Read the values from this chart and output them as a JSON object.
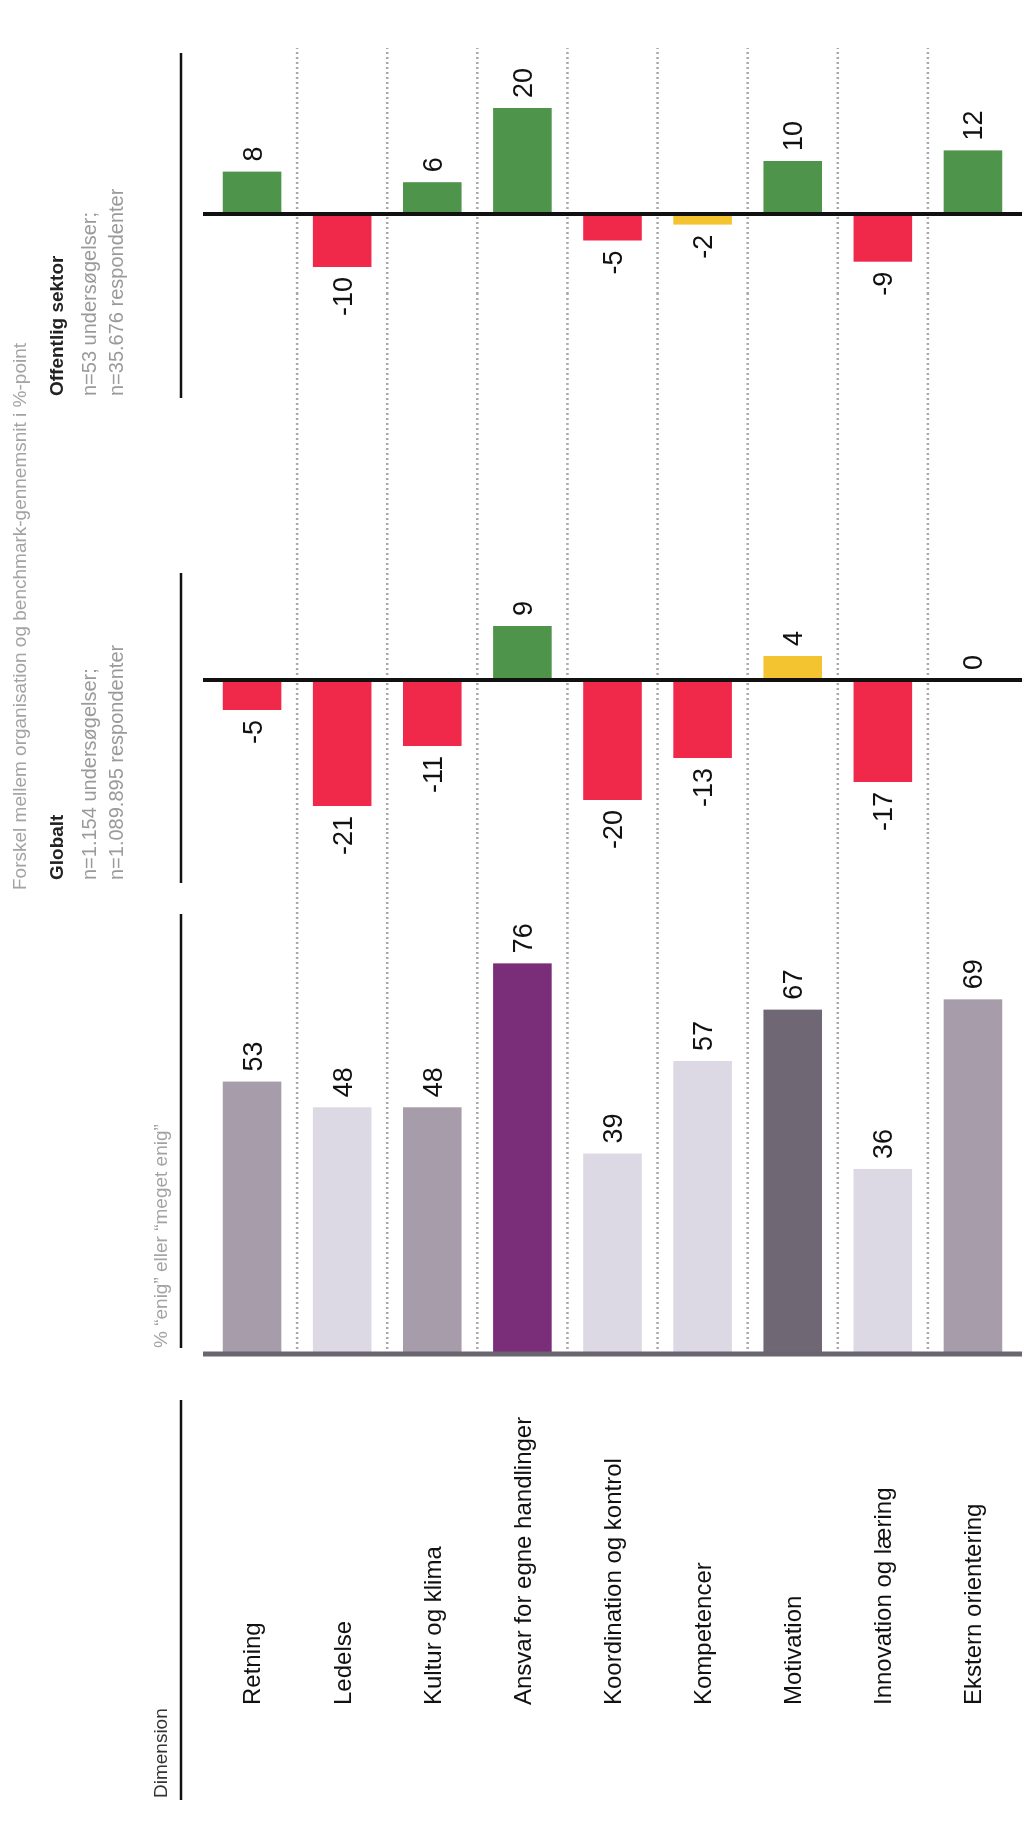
{
  "chart_data": [
    {
      "type": "bar",
      "title": "% “enig” eller “meget enig”",
      "annotations": [
        "Dimension"
      ],
      "categories": [
        "Retning",
        "Ledelse",
        "Kultur og klima",
        "Ansvar for egne handlinger",
        "Koordination og kontrol",
        "Kompetencer",
        "Motivation",
        "Innovation og læring",
        "Ekstern orientering"
      ],
      "values": [
        53,
        48,
        48,
        76,
        39,
        57,
        67,
        36,
        69
      ],
      "colors": [
        "#a79daa",
        "#dcd8e4",
        "#a79daa",
        "#7a2e7a",
        "#dcd8e4",
        "#dcd8e4",
        "#6f6874",
        "#dcd8e4",
        "#a79daa"
      ],
      "data_labels": true,
      "grid": "x",
      "tick_labels": "x"
    },
    {
      "type": "bar",
      "subtitle": "n=1.154 undersøgelser; n=1.089.895 respondenter",
      "annotations": [
        "Forskel mellem organisation og benchmark-gennemsnit i %-point",
        "Globalt"
      ],
      "categories": [
        null,
        null,
        null,
        null,
        null,
        null,
        null,
        null,
        null
      ],
      "values": [
        -5,
        -21,
        -11,
        9,
        -20,
        -13,
        4,
        -17,
        0
      ],
      "colors": [
        "#f0284a",
        "#f0284a",
        "#f0284a",
        "#4e944a",
        "#f0284a",
        "#f0284a",
        "#f4c430",
        "#f0284a",
        "#f4c430"
      ],
      "data_labels": true,
      "grid": "x",
      "tick_labels": false
    },
    {
      "type": "bar",
      "subtitle": "n=53 undersøgelser; n=35.676 respondenter",
      "annotations": [
        "Offentlig sektor"
      ],
      "categories": [
        null,
        null,
        null,
        null,
        null,
        null,
        null,
        null,
        null
      ],
      "values": [
        8,
        -10,
        6,
        20,
        -5,
        -2,
        10,
        -9,
        12
      ],
      "colors": [
        "#4e944a",
        "#f0284a",
        "#4e944a",
        "#4e944a",
        "#f0284a",
        "#f4c430",
        "#4e944a",
        "#f0284a",
        "#4e944a"
      ],
      "data_labels": true,
      "grid": "x",
      "tick_labels": false
    }
  ]
}
